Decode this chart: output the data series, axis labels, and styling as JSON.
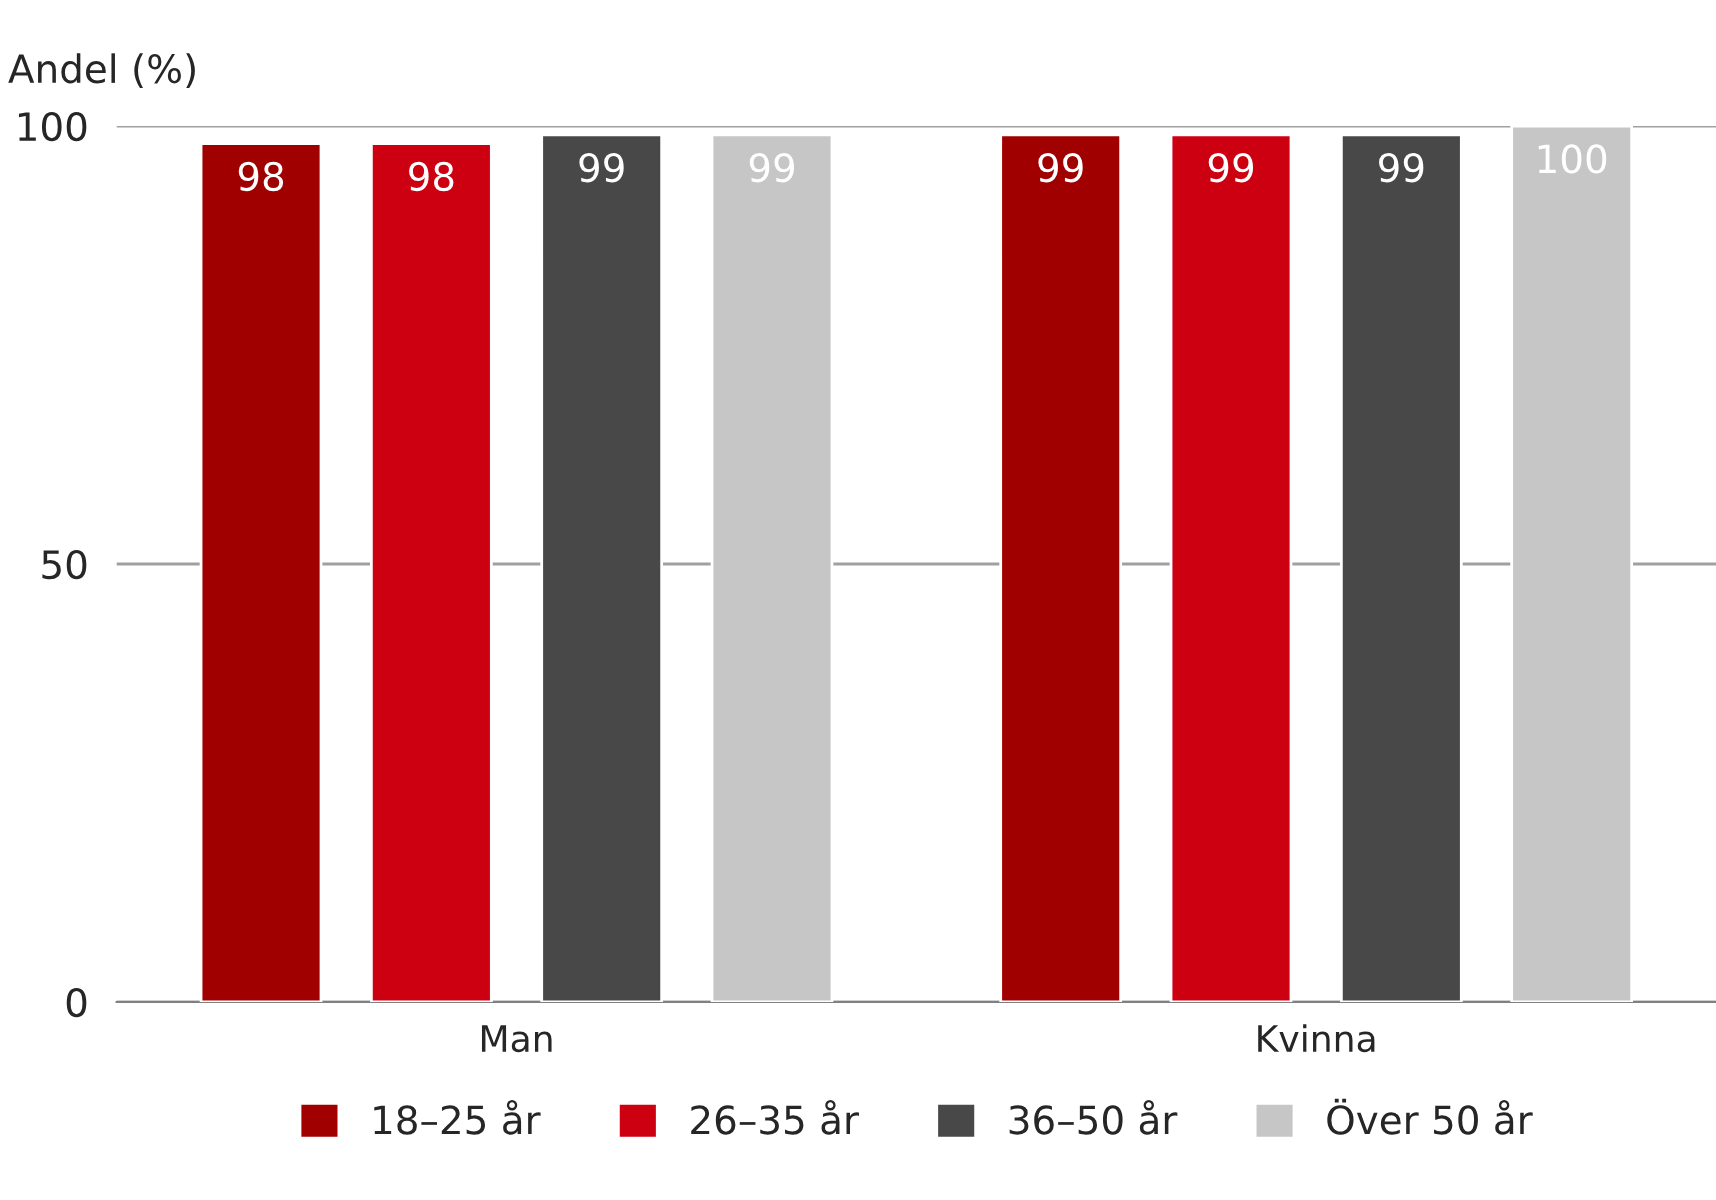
{
  "chart_data": {
    "type": "bar",
    "ylabel": "Andel (%)",
    "categories": [
      "Man",
      "Kvinna"
    ],
    "series": [
      {
        "name": "18–25 år",
        "color": "#a00000",
        "values": [
          98,
          99
        ]
      },
      {
        "name": "26–35 år",
        "color": "#cc0010",
        "values": [
          98,
          99
        ]
      },
      {
        "name": "36–50 år",
        "color": "#484848",
        "values": [
          99,
          99
        ]
      },
      {
        "name": "Över 50 år",
        "color": "#c6c6c6",
        "values": [
          99,
          100
        ]
      }
    ],
    "ylim": [
      0,
      100
    ],
    "yticks": [
      0,
      50,
      100
    ],
    "grid": "y",
    "legend": "bottom",
    "data_labels": true
  }
}
